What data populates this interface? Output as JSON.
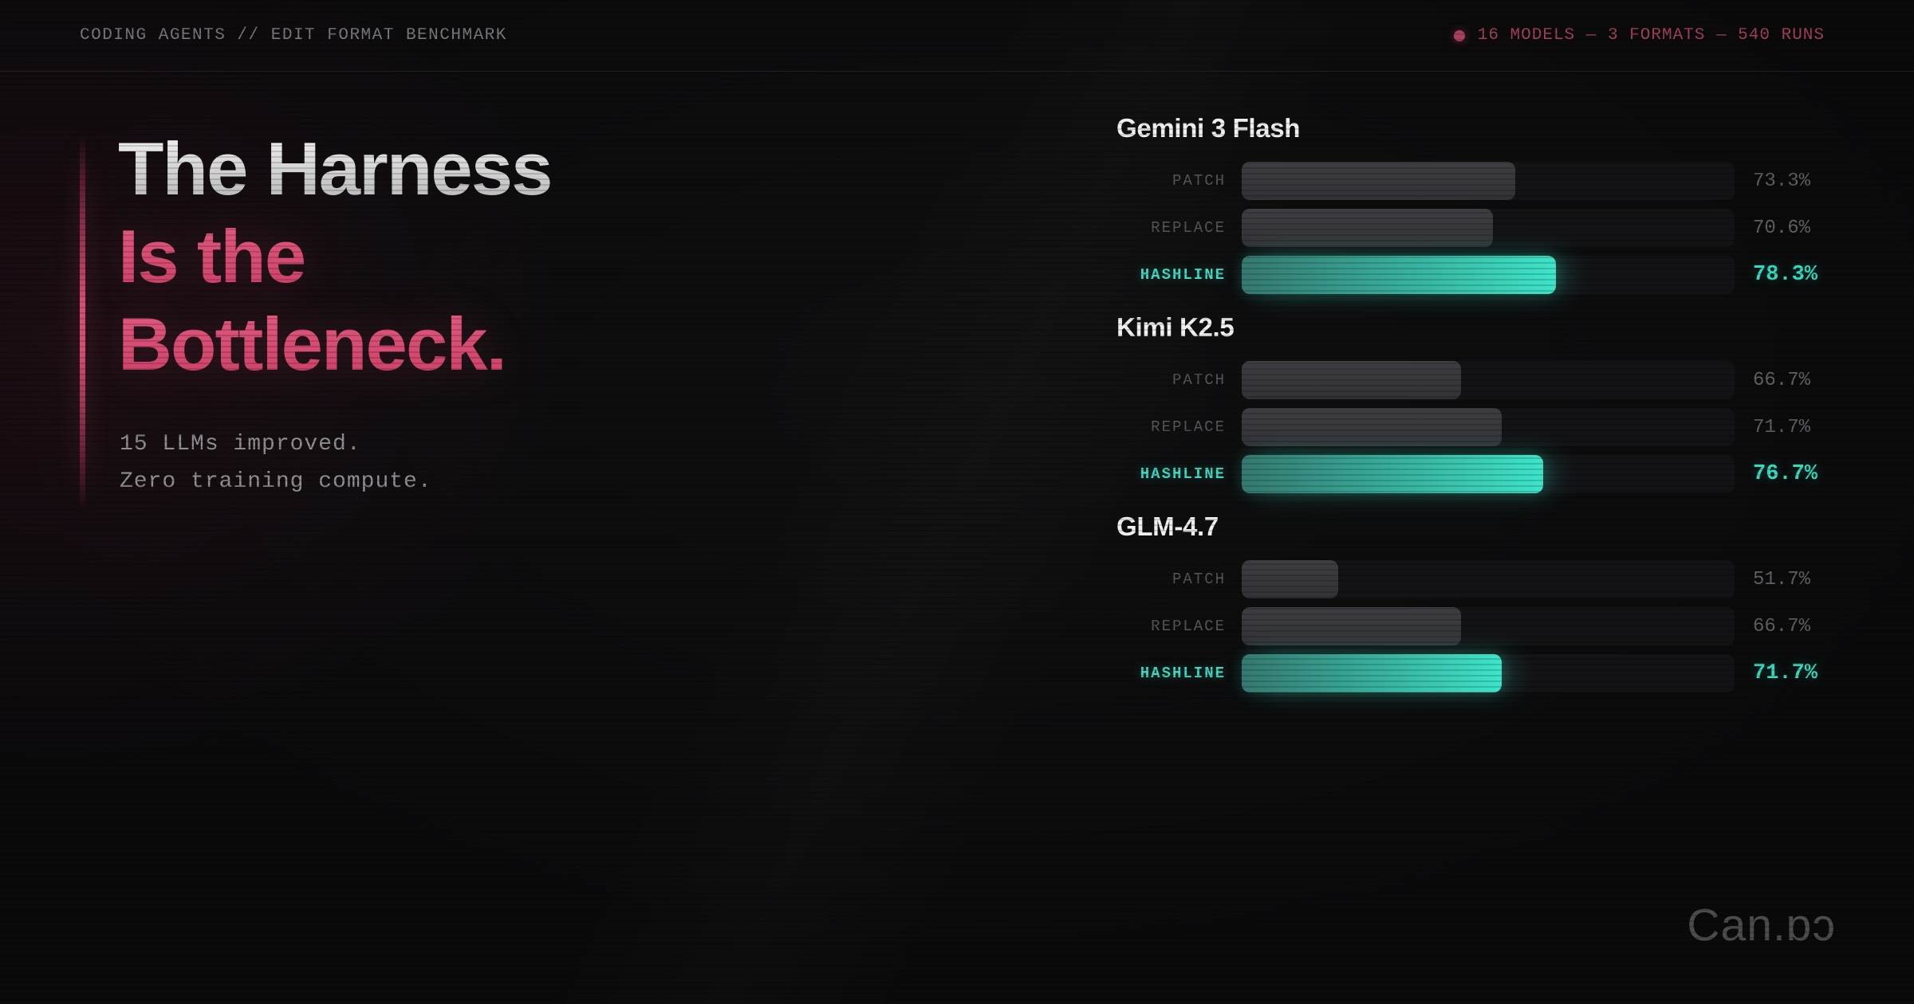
{
  "header": {
    "left": "CODING AGENTS // EDIT FORMAT BENCHMARK",
    "right": "16 MODELS — 3 FORMATS — 540 RUNS",
    "dot_color": "#a8415c"
  },
  "hero": {
    "title_line1": "The Harness",
    "title_line2": "Is the",
    "title_line3": "Bottleneck.",
    "subtitle_line1": "15 LLMs improved.",
    "subtitle_line2": "Zero training compute."
  },
  "watermark": "Can.ɒɔ",
  "colors": {
    "background": "#0a0a0b",
    "accent_pink": "#d84f74",
    "accent_teal": "#3de4c9",
    "crimson_stat": "#a23f58",
    "gray_bar": "#38383c",
    "track": "#131316"
  },
  "chart_data": {
    "type": "bar",
    "orientation": "horizontal",
    "unit": "%",
    "xlim": [
      40,
      100
    ],
    "grid": false,
    "categories": [
      "PATCH",
      "REPLACE",
      "HASHLINE"
    ],
    "highlight_category": "HASHLINE",
    "groups": [
      {
        "title": "Gemini 3 Flash",
        "values": {
          "PATCH": 73.3,
          "REPLACE": 70.6,
          "HASHLINE": 78.3
        }
      },
      {
        "title": "Kimi K2.5",
        "values": {
          "PATCH": 66.7,
          "REPLACE": 71.7,
          "HASHLINE": 76.7
        }
      },
      {
        "title": "GLM-4.7",
        "values": {
          "PATCH": 51.7,
          "REPLACE": 66.7,
          "HASHLINE": 71.7
        }
      }
    ]
  }
}
